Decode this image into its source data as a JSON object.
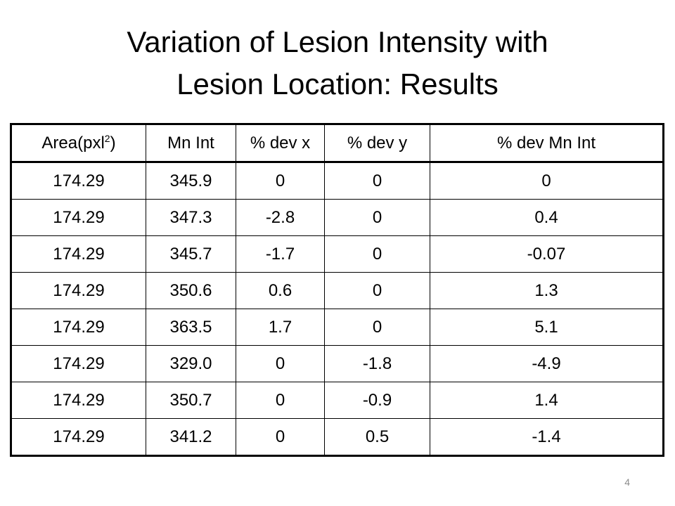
{
  "slide": {
    "title_line1": "Variation of Lesion Intensity with",
    "title_line2": "Lesion Location: Results",
    "page_number": "4"
  },
  "table": {
    "headers": {
      "area_base": "Area(pxl",
      "area_sup": "2",
      "area_close": ")",
      "mn_int": "Mn Int",
      "dev_x": "% dev x",
      "dev_y": "% dev y",
      "dev_mn_int": "% dev Mn Int"
    },
    "rows": [
      [
        "174.29",
        "345.9",
        "0",
        "0",
        "0"
      ],
      [
        "174.29",
        "347.3",
        "-2.8",
        "0",
        "0.4"
      ],
      [
        "174.29",
        "345.7",
        "-1.7",
        "0",
        "-0.07"
      ],
      [
        "174.29",
        "350.6",
        "0.6",
        "0",
        "1.3"
      ],
      [
        "174.29",
        "363.5",
        "1.7",
        "0",
        "5.1"
      ],
      [
        "174.29",
        "329.0",
        "0",
        "-1.8",
        "-4.9"
      ],
      [
        "174.29",
        "350.7",
        "0",
        "-0.9",
        "1.4"
      ],
      [
        "174.29",
        "341.2",
        "0",
        "0.5",
        "-1.4"
      ]
    ]
  }
}
